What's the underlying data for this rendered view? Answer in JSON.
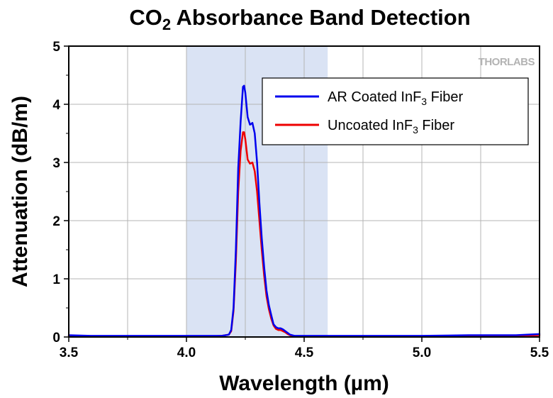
{
  "chart_data": {
    "type": "line",
    "title": "CO2 Absorbance Band Detection",
    "title_parts": {
      "main": "CO",
      "sub": "2",
      "rest": " Absorbance Band Detection"
    },
    "xlabel": "Wavelength (µm)",
    "ylabel": "Attenuation (dB/m)",
    "xlim": [
      3.5,
      5.5
    ],
    "ylim": [
      0,
      5
    ],
    "x_ticks": [
      "3.5",
      "4.0",
      "4.5",
      "5.0",
      "5.5"
    ],
    "y_ticks": [
      "0",
      "1",
      "2",
      "3",
      "4",
      "5"
    ],
    "grid": true,
    "legend_position": "top-right",
    "shaded_region": {
      "x": [
        4.0,
        4.6
      ],
      "color": "#dae3f4"
    },
    "logo": "THORLABS",
    "series": [
      {
        "name": "AR Coated InF3 Fiber",
        "legend": {
          "main": "AR Coated InF",
          "sub": "3",
          "rest": " Fiber"
        },
        "color": "#0000ee",
        "x": [
          3.5,
          3.6,
          3.8,
          4.0,
          4.1,
          4.15,
          4.18,
          4.19,
          4.2,
          4.21,
          4.22,
          4.23,
          4.24,
          4.245,
          4.25,
          4.26,
          4.27,
          4.28,
          4.29,
          4.3,
          4.31,
          4.32,
          4.33,
          4.34,
          4.35,
          4.36,
          4.37,
          4.38,
          4.39,
          4.4,
          4.41,
          4.42,
          4.43,
          4.44,
          4.46,
          4.5,
          4.6,
          5.0,
          5.2,
          5.4,
          5.5
        ],
        "y": [
          0.03,
          0.02,
          0.02,
          0.02,
          0.02,
          0.02,
          0.04,
          0.12,
          0.5,
          1.5,
          2.9,
          3.7,
          4.3,
          4.32,
          4.2,
          3.78,
          3.65,
          3.68,
          3.5,
          3.0,
          2.3,
          1.7,
          1.2,
          0.8,
          0.55,
          0.38,
          0.22,
          0.17,
          0.15,
          0.15,
          0.13,
          0.1,
          0.07,
          0.04,
          0.02,
          0.02,
          0.02,
          0.02,
          0.03,
          0.03,
          0.05
        ]
      },
      {
        "name": "Uncoated InF3 Fiber",
        "legend": {
          "main": "Uncoated InF",
          "sub": "3",
          "rest": " Fiber"
        },
        "color": "#ee0000",
        "x": [
          3.5,
          3.6,
          3.8,
          4.0,
          4.1,
          4.15,
          4.18,
          4.19,
          4.2,
          4.21,
          4.22,
          4.23,
          4.24,
          4.245,
          4.25,
          4.26,
          4.27,
          4.28,
          4.29,
          4.3,
          4.31,
          4.32,
          4.33,
          4.34,
          4.35,
          4.36,
          4.37,
          4.38,
          4.39,
          4.4,
          4.41,
          4.42,
          4.43,
          4.44,
          4.46,
          4.5,
          4.6,
          5.0,
          5.2,
          5.4,
          5.5
        ],
        "y": [
          0.02,
          0.01,
          0.01,
          0.01,
          0.01,
          0.02,
          0.04,
          0.1,
          0.45,
          1.3,
          2.5,
          3.2,
          3.52,
          3.52,
          3.4,
          3.05,
          2.98,
          3.0,
          2.85,
          2.5,
          2.0,
          1.5,
          1.05,
          0.7,
          0.48,
          0.32,
          0.2,
          0.14,
          0.12,
          0.12,
          0.1,
          0.08,
          0.05,
          0.03,
          0.01,
          0.01,
          0.01,
          0.01,
          0.02,
          0.02,
          0.03
        ]
      }
    ]
  }
}
